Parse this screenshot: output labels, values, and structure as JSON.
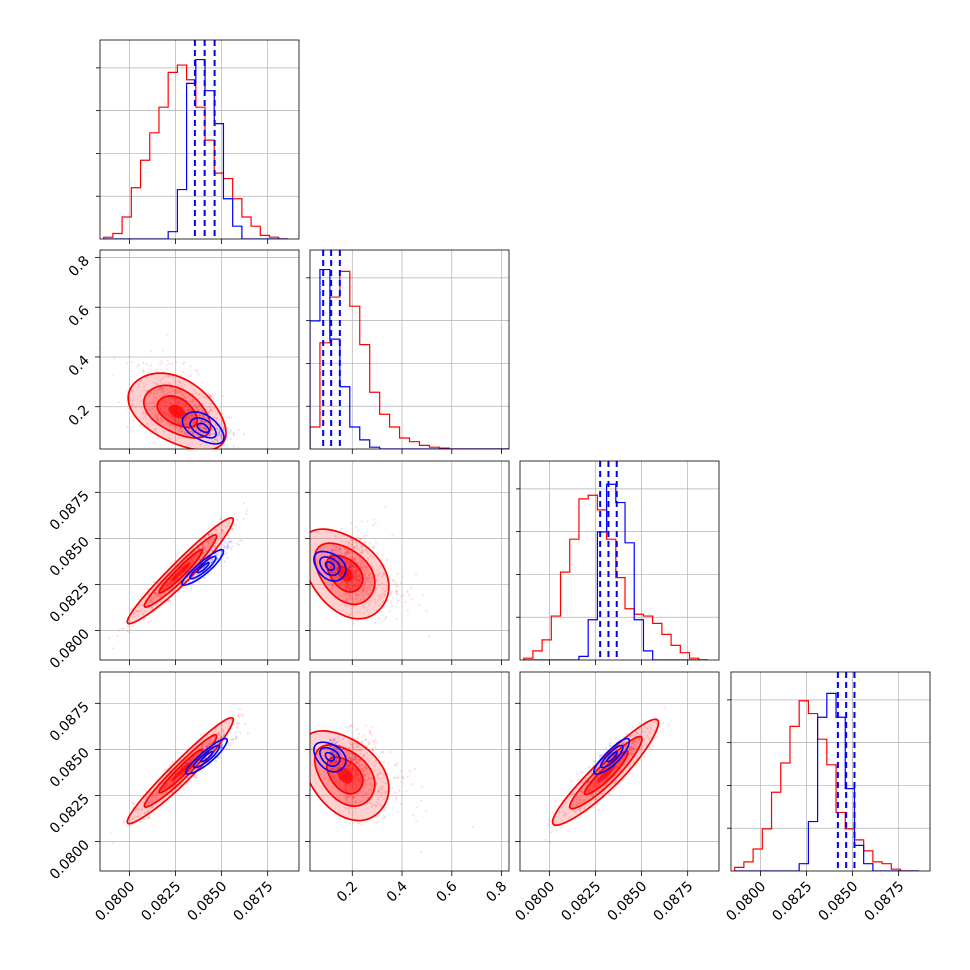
{
  "chart_data": {
    "type": "corner",
    "grid": true,
    "colors": {
      "red": "#ff0000",
      "blue": "#0000ff",
      "frame": "#000000",
      "grid": "#b0b0b0"
    },
    "param_ranges": [
      [
        0.0784,
        0.0892
      ],
      [
        0.03,
        0.83
      ],
      [
        0.0784,
        0.0892
      ],
      [
        0.0784,
        0.0892
      ]
    ],
    "tick_labels": {
      "p1": [
        "0.0800",
        "0.0825",
        "0.0850",
        "0.0875"
      ],
      "p2": [
        "0.2",
        "0.4",
        "0.6",
        "0.8"
      ],
      "p3": [
        "0.0800",
        "0.0825",
        "0.0850",
        "0.0875"
      ],
      "p4": [
        "0.0800",
        "0.0825",
        "0.0850",
        "0.0875"
      ]
    },
    "tick_values": {
      "p1": [
        0.08,
        0.0825,
        0.085,
        0.0875
      ],
      "p2": [
        0.2,
        0.4,
        0.6,
        0.8
      ],
      "p3": [
        0.08,
        0.0825,
        0.085,
        0.0875
      ],
      "p4": [
        0.08,
        0.0825,
        0.085,
        0.0875
      ]
    },
    "series": [
      {
        "color": "red"
      },
      {
        "color": "blue"
      }
    ],
    "histograms": [
      {
        "param": 0,
        "edges": [
          0.0786,
          0.0791,
          0.0796,
          0.0801,
          0.0806,
          0.0811,
          0.0816,
          0.0821,
          0.0826,
          0.0831,
          0.0836,
          0.0841,
          0.0846,
          0.0851,
          0.0856,
          0.0861,
          0.0866,
          0.0871,
          0.0876,
          0.0881,
          0.0886
        ],
        "red": [
          0.01,
          0.03,
          0.12,
          0.28,
          0.43,
          0.58,
          0.72,
          0.91,
          0.95,
          0.87,
          0.72,
          0.54,
          0.36,
          0.33,
          0.22,
          0.12,
          0.07,
          0.02,
          0.01,
          0.0
        ],
        "blue": [
          0,
          0,
          0,
          0,
          0,
          0,
          0,
          0.04,
          0.27,
          0.85,
          0.98,
          0.81,
          0.63,
          0.22,
          0.07,
          0.0,
          0,
          0,
          0,
          0
        ],
        "quantile_lines": [
          0.08355,
          0.08408,
          0.08462
        ]
      },
      {
        "param": 1,
        "edges": [
          0.03,
          0.07,
          0.11,
          0.15,
          0.19,
          0.23,
          0.27,
          0.31,
          0.35,
          0.39,
          0.43,
          0.47,
          0.51,
          0.55,
          0.59,
          0.63,
          0.67,
          0.71,
          0.75,
          0.79,
          0.83
        ],
        "red": [
          0.12,
          0.58,
          0.83,
          0.97,
          0.78,
          0.57,
          0.31,
          0.19,
          0.12,
          0.06,
          0.04,
          0.02,
          0.01,
          0.005,
          0,
          0,
          0,
          0,
          0,
          0
        ],
        "blue": [
          0.7,
          0.98,
          0.6,
          0.34,
          0.12,
          0.05,
          0.01,
          0,
          0,
          0,
          0,
          0,
          0,
          0,
          0,
          0,
          0,
          0,
          0,
          0
        ],
        "quantile_lines": [
          0.083,
          0.115,
          0.15
        ]
      },
      {
        "param": 2,
        "edges": [
          0.0786,
          0.0791,
          0.0796,
          0.0801,
          0.0806,
          0.0811,
          0.0816,
          0.0821,
          0.0826,
          0.0831,
          0.0836,
          0.0841,
          0.0846,
          0.0851,
          0.0856,
          0.0861,
          0.0866,
          0.0871,
          0.0876,
          0.0881,
          0.0886
        ],
        "red": [
          0.01,
          0.05,
          0.11,
          0.24,
          0.48,
          0.66,
          0.88,
          0.9,
          0.82,
          0.66,
          0.45,
          0.28,
          0.25,
          0.24,
          0.2,
          0.14,
          0.08,
          0.04,
          0.01,
          0.0
        ],
        "blue": [
          0,
          0,
          0,
          0,
          0,
          0,
          0.02,
          0.22,
          0.7,
          0.96,
          0.86,
          0.64,
          0.22,
          0.05,
          0,
          0,
          0,
          0,
          0,
          0
        ],
        "quantile_lines": [
          0.08275,
          0.0832,
          0.08365
        ]
      },
      {
        "param": 3,
        "edges": [
          0.0786,
          0.0791,
          0.0796,
          0.0801,
          0.0806,
          0.0811,
          0.0816,
          0.0821,
          0.0826,
          0.0831,
          0.0836,
          0.0841,
          0.0846,
          0.0851,
          0.0856,
          0.0861,
          0.0866,
          0.0871,
          0.0876,
          0.0881,
          0.0886
        ],
        "red": [
          0.02,
          0.05,
          0.12,
          0.23,
          0.43,
          0.59,
          0.79,
          0.93,
          0.86,
          0.72,
          0.58,
          0.32,
          0.23,
          0.17,
          0.11,
          0.05,
          0.04,
          0.01,
          0.0,
          0.0
        ],
        "blue": [
          0,
          0,
          0,
          0,
          0,
          0,
          0,
          0.04,
          0.27,
          0.84,
          0.97,
          0.84,
          0.45,
          0.14,
          0.04,
          0,
          0,
          0,
          0,
          0
        ],
        "quantile_lines": [
          0.0842,
          0.08465,
          0.0851
        ]
      }
    ],
    "pairs": [
      {
        "row": 1,
        "col": 0,
        "red_mean": [
          0.0826,
          0.18
        ],
        "red_sd": [
          0.0012,
          0.07
        ],
        "red_rho": -0.45,
        "blue_mean": [
          0.084,
          0.115
        ],
        "blue_sd": [
          0.0007,
          0.04
        ],
        "blue_rho": -0.5
      },
      {
        "row": 2,
        "col": 0,
        "red_mean": [
          0.0828,
          0.0832
        ],
        "red_sd": [
          0.0013,
          0.0013
        ],
        "red_rho": 0.96,
        "blue_mean": [
          0.084,
          0.0834
        ],
        "blue_sd": [
          0.0007,
          0.0006
        ],
        "blue_rho": 0.9
      },
      {
        "row": 2,
        "col": 1,
        "red_mean": [
          0.17,
          0.0831
        ],
        "red_sd": [
          0.08,
          0.0011
        ],
        "red_rho": -0.4,
        "blue_mean": [
          0.11,
          0.0835
        ],
        "blue_sd": [
          0.04,
          0.0005
        ],
        "blue_rho": -0.35
      },
      {
        "row": 3,
        "col": 0,
        "red_mean": [
          0.0828,
          0.0838
        ],
        "red_sd": [
          0.0013,
          0.0013
        ],
        "red_rho": 0.96,
        "blue_mean": [
          0.0842,
          0.0846
        ],
        "blue_sd": [
          0.0007,
          0.0006
        ],
        "blue_rho": 0.9
      },
      {
        "row": 3,
        "col": 1,
        "red_mean": [
          0.17,
          0.0836
        ],
        "red_sd": [
          0.08,
          0.0011
        ],
        "red_rho": -0.4,
        "blue_mean": [
          0.11,
          0.0846
        ],
        "blue_sd": [
          0.04,
          0.0005
        ],
        "blue_rho": -0.35
      },
      {
        "row": 3,
        "col": 2,
        "red_mean": [
          0.0831,
          0.0837
        ],
        "red_sd": [
          0.0013,
          0.0013
        ],
        "red_rho": 0.93,
        "blue_mean": [
          0.0834,
          0.0846
        ],
        "blue_sd": [
          0.0006,
          0.0006
        ],
        "blue_rho": 0.85
      }
    ]
  }
}
